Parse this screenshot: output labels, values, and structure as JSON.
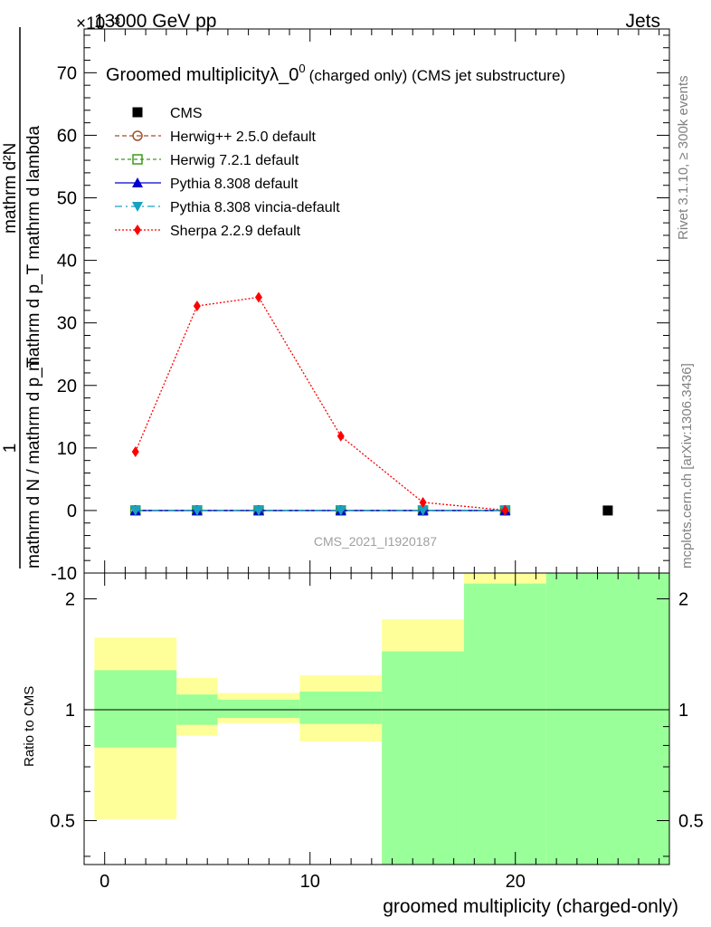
{
  "header": {
    "left": "13000 GeV pp",
    "right": "Jets",
    "exponent": "×10⁻³"
  },
  "side_labels": {
    "rivet": "Rivet 3.1.10, ≥ 300k events",
    "mcplots": "mcplots.cern.ch [arXiv:1306.3436]"
  },
  "watermark": "CMS_2021_I1920187",
  "colors": {
    "cms": "#000000",
    "herwigpp": "#a0522d",
    "herwig7": "#3a9a1a",
    "pythia": "#0000cc",
    "vincia": "#1aa0c0",
    "sherpa": "#ff0000",
    "band_green": "#99ff99",
    "band_yellow": "#ffff99"
  },
  "chart_data": [
    {
      "type": "scatter",
      "title": "Groomed multiplicity",
      "title_lambda": "λ_0",
      "title_sup": "0",
      "title_tail": "(charged only) (CMS jet substructure)",
      "ylabel": "1 / (mathrm d N / mathrm d p_T) · mathrm d²N / (mathrm d p_T mathrm d lambda)",
      "ylabel_num": "mathrm d²N",
      "ylabel_den": "mathrm d p_T mathrm d lambda",
      "ylabel_pre_num": "1",
      "ylabel_pre_den": "mathrm d N / mathrm d p_T",
      "y_scale_exponent": "-3",
      "ylim": [
        -10,
        77
      ],
      "xlim": [
        -1,
        27.5
      ],
      "yticks": [
        -10,
        0,
        10,
        20,
        30,
        40,
        50,
        60,
        70
      ],
      "legend_position": "top-left",
      "series": [
        {
          "name": "CMS",
          "style": "data",
          "x": [
            24.5
          ],
          "y": [
            0
          ]
        },
        {
          "name": "Herwig++ 2.5.0 default",
          "style": "herwigpp",
          "x": [
            1.5,
            4.5,
            7.5,
            11.5,
            15.5,
            19.5
          ],
          "y": [
            0,
            0,
            0,
            0,
            0,
            0
          ]
        },
        {
          "name": "Herwig 7.2.1 default",
          "style": "herwig7",
          "x": [
            1.5,
            4.5,
            7.5,
            11.5,
            15.5,
            19.5
          ],
          "y": [
            0,
            0,
            0,
            0,
            0,
            0
          ]
        },
        {
          "name": "Pythia 8.308 default",
          "style": "pythia",
          "x": [
            1.5,
            4.5,
            7.5,
            11.5,
            15.5,
            19.5
          ],
          "y": [
            0,
            0,
            0,
            0,
            0,
            0
          ]
        },
        {
          "name": "Pythia 8.308 vincia-default",
          "style": "vincia",
          "x": [
            1.5,
            4.5,
            7.5,
            11.5,
            15.5,
            19.5
          ],
          "y": [
            0,
            0,
            0,
            0,
            0,
            0
          ]
        },
        {
          "name": "Sherpa 2.2.9 default",
          "style": "sherpa",
          "x": [
            1.5,
            4.5,
            7.5,
            11.5,
            15.5,
            19.5
          ],
          "y": [
            9.4,
            32.7,
            34.1,
            11.9,
            1.3,
            0.05
          ]
        }
      ]
    },
    {
      "type": "area",
      "ylabel": "Ratio to CMS",
      "xlabel": "groomed multiplicity (charged-only)",
      "scale": "log",
      "ylim": [
        0.38,
        2.35
      ],
      "xlim": [
        -1,
        27.5
      ],
      "yticks": [
        0.5,
        1,
        2
      ],
      "xticks": [
        0,
        10,
        20
      ],
      "reference_line": 1,
      "bins": [
        {
          "x0": -0.5,
          "x1": 3.5,
          "green": [
            0.79,
            1.28
          ],
          "yellow": [
            0.505,
            1.57
          ]
        },
        {
          "x0": 3.5,
          "x1": 5.5,
          "green": [
            0.91,
            1.1
          ],
          "yellow": [
            0.85,
            1.22
          ]
        },
        {
          "x0": 5.5,
          "x1": 9.5,
          "green": [
            0.95,
            1.065
          ],
          "yellow": [
            0.92,
            1.11
          ]
        },
        {
          "x0": 9.5,
          "x1": 13.5,
          "green": [
            0.915,
            1.12
          ],
          "yellow": [
            0.82,
            1.24
          ]
        },
        {
          "x0": 13.5,
          "x1": 17.5,
          "green": [
            0.38,
            1.44
          ],
          "yellow": [
            0.38,
            1.76
          ]
        },
        {
          "x0": 17.5,
          "x1": 21.5,
          "green": [
            0.38,
            2.2
          ],
          "yellow": [
            0.38,
            2.35
          ]
        },
        {
          "x0": 21.5,
          "x1": 27.5,
          "green": [
            0.38,
            2.35
          ],
          "yellow": [
            0.38,
            2.35
          ]
        }
      ]
    }
  ]
}
